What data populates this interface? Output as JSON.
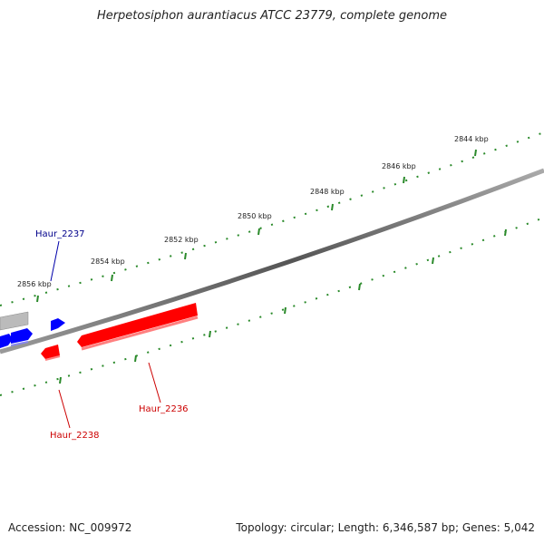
{
  "title": "Herpetosiphon aurantiacus ATCC 23779, complete genome",
  "ticks": [
    "2844 kbp",
    "2846 kbp",
    "2848 kbp",
    "2850 kbp",
    "2852 kbp",
    "2854 kbp",
    "2856 kbp"
  ],
  "genes": [
    {
      "name": "Haur_2237",
      "color": "#00008b",
      "strand": "forward"
    },
    {
      "name": "Haur_2236",
      "color": "#cc0000",
      "strand": "reverse"
    },
    {
      "name": "Haur_2238",
      "color": "#cc0000",
      "strand": "reverse"
    }
  ],
  "colors": {
    "forward_feature": "#0000ff",
    "reverse_feature": "#ff0000",
    "ruler": "#2a8a2a",
    "backbone": "#777777"
  },
  "footer": {
    "accession": "Accession: NC_009972",
    "stats": "Topology: circular; Length: 6,346,587 bp; Genes: 5,042"
  }
}
